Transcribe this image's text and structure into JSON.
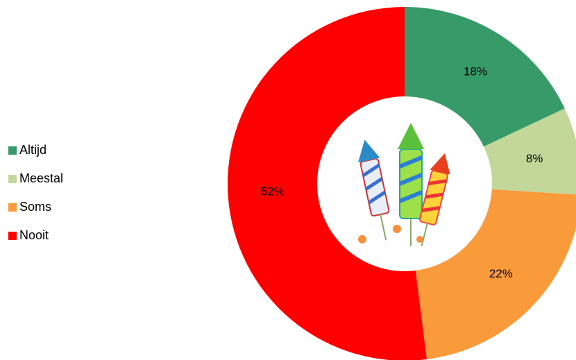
{
  "chart_data": {
    "type": "donut",
    "categories": [
      "Altijd",
      "Meestal",
      "Soms",
      "Nooit"
    ],
    "values": [
      18,
      8,
      22,
      52
    ],
    "value_labels": [
      "18%",
      "8%",
      "22%",
      "52%"
    ],
    "colors": [
      "#379a69",
      "#c4d79b",
      "#f99a3b",
      "#ff0000"
    ],
    "legend": "left"
  }
}
